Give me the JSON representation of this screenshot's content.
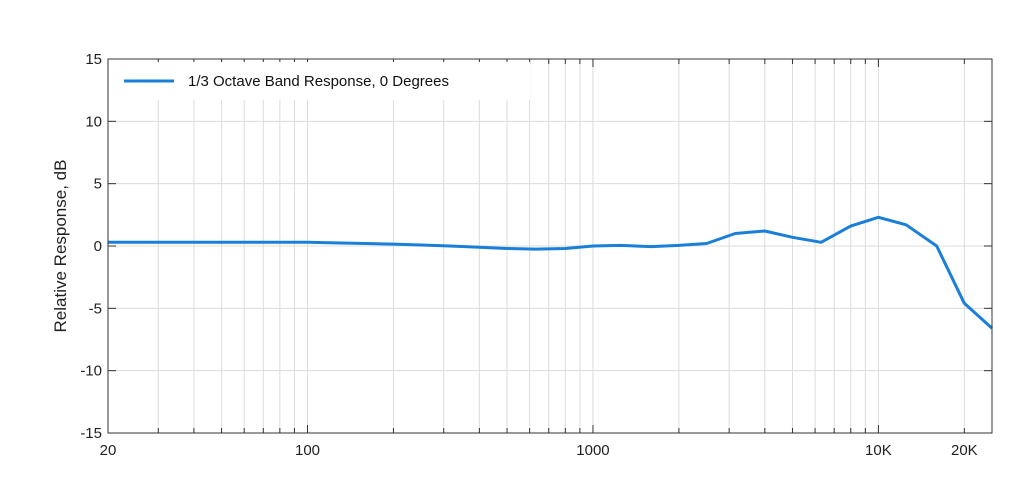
{
  "chart_data": {
    "type": "line",
    "xscale": "log",
    "xlim": [
      20,
      25000
    ],
    "ylim": [
      -15,
      15
    ],
    "xlabel": "",
    "ylabel": "Relative Response, dB",
    "grid": true,
    "legend_position": "top-left",
    "x_ticks": [
      {
        "value": 20,
        "label": "20"
      },
      {
        "value": 100,
        "label": "100"
      },
      {
        "value": 1000,
        "label": "1000"
      },
      {
        "value": 10000,
        "label": "10K"
      },
      {
        "value": 20000,
        "label": "20K"
      }
    ],
    "y_ticks": [
      15,
      10,
      5,
      0,
      -5,
      -10,
      -15
    ],
    "series": [
      {
        "name": "1/3 Octave Band Response, 0 Degrees",
        "color": "#1a7fd8",
        "x": [
          20,
          25,
          31.5,
          40,
          50,
          63,
          80,
          100,
          125,
          160,
          200,
          250,
          315,
          400,
          500,
          630,
          800,
          1000,
          1250,
          1600,
          2000,
          2500,
          3150,
          4000,
          5000,
          6300,
          8000,
          10000,
          12500,
          16000,
          20000,
          25000
        ],
        "y": [
          0.3,
          0.3,
          0.3,
          0.3,
          0.3,
          0.3,
          0.3,
          0.3,
          0.25,
          0.2,
          0.15,
          0.08,
          0.0,
          -0.1,
          -0.2,
          -0.25,
          -0.2,
          0.0,
          0.05,
          -0.05,
          0.05,
          0.2,
          1.0,
          1.2,
          0.7,
          0.3,
          1.6,
          2.3,
          1.7,
          0.0,
          -4.6,
          -6.6
        ]
      }
    ]
  }
}
